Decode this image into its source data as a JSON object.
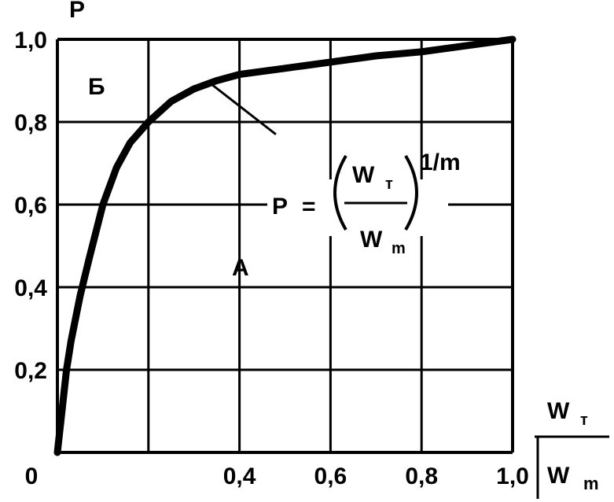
{
  "chart_data": {
    "type": "line",
    "ylabel": "P",
    "xlim": [
      0,
      1.0
    ],
    "ylim": [
      0,
      1.0
    ],
    "grid": true,
    "x_ticks": [
      "0,4",
      "0,6",
      "0,8",
      "1,0"
    ],
    "y_ticks": [
      "0,2",
      "0,4",
      "0,6",
      "0,8",
      "1,0"
    ],
    "origin_label": "0",
    "x_axis_fraction": {
      "numerator": "W",
      "numerator_sub": "т",
      "denominator": "W",
      "denominator_sub": "m"
    },
    "region_labels": [
      "Б",
      "A"
    ],
    "formula": {
      "lhs": "P",
      "equals": "=",
      "numerator": "W",
      "numerator_sub": "т",
      "denominator": "W",
      "denominator_sub": "m",
      "exponent": "1/m"
    },
    "series": [
      {
        "x": [
          0.0,
          0.01,
          0.02,
          0.03,
          0.05,
          0.07,
          0.1,
          0.13,
          0.16,
          0.2,
          0.25,
          0.3,
          0.35,
          0.4,
          0.5,
          0.6,
          0.7,
          0.8,
          0.9,
          1.0
        ],
        "y": [
          0.0,
          0.1,
          0.2,
          0.27,
          0.38,
          0.47,
          0.6,
          0.69,
          0.75,
          0.8,
          0.85,
          0.88,
          0.9,
          0.915,
          0.93,
          0.945,
          0.96,
          0.97,
          0.985,
          1.0
        ]
      }
    ]
  }
}
